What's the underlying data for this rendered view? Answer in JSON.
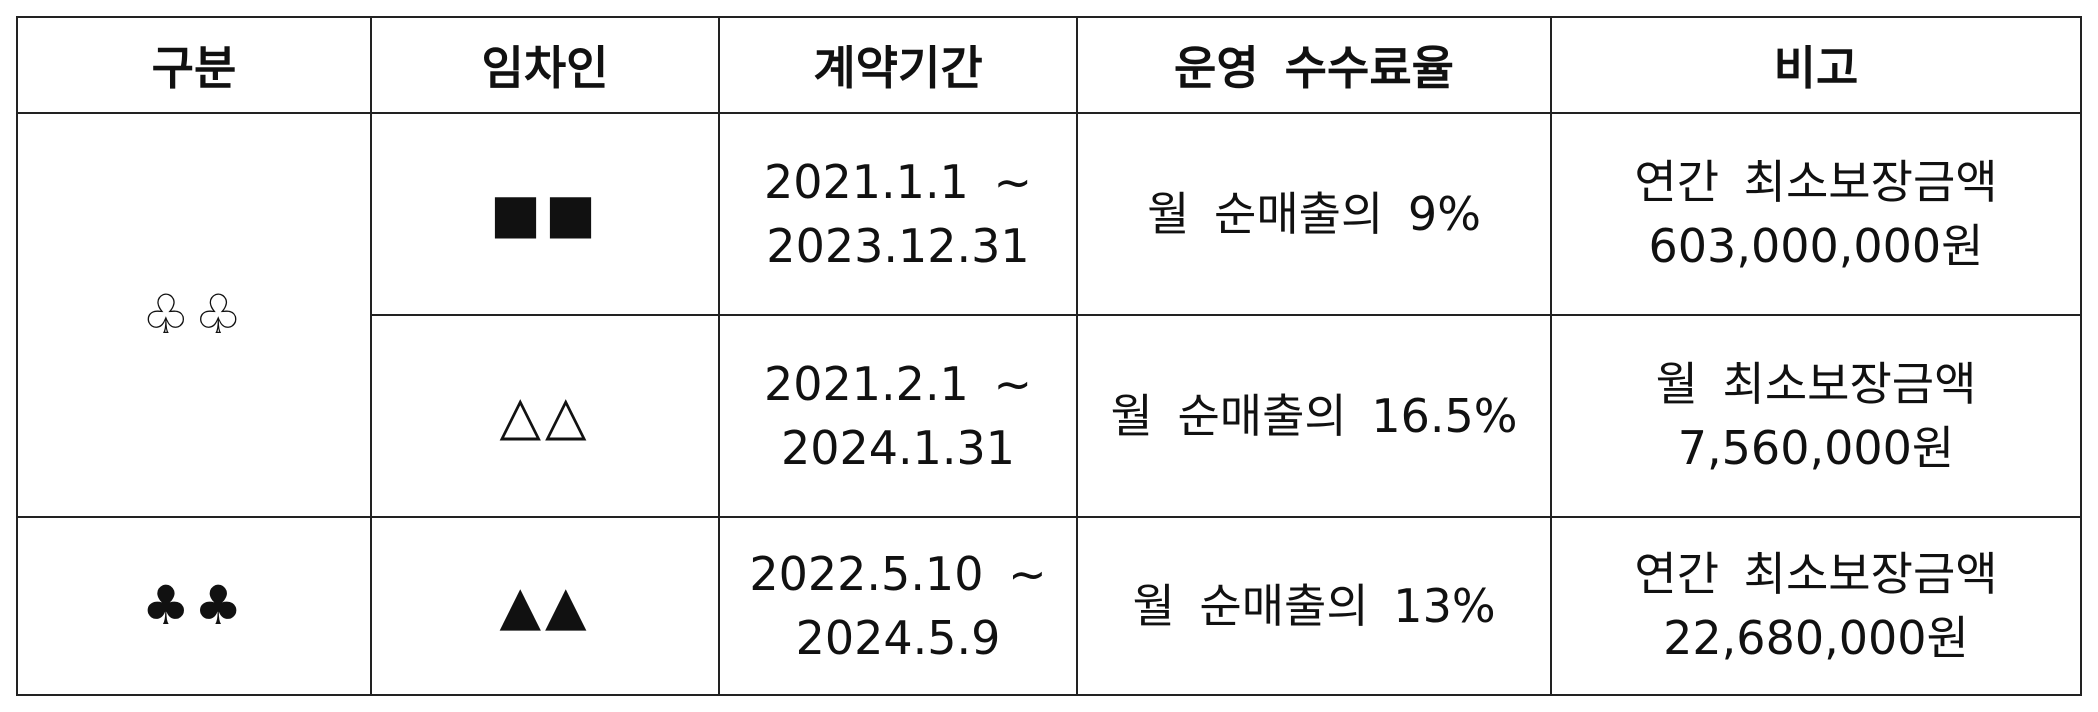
{
  "headers": [
    "구분",
    "임차인",
    "계약기간",
    "운영 수수료율",
    "비고"
  ],
  "groups": [
    {
      "category": "♧♧",
      "rows": [
        {
          "tenant": "■■",
          "period_start": "2021.1.1 ~",
          "period_end": "2023.12.31",
          "fee_rate": "월 순매출의 9%",
          "note_line1": "연간 최소보장금액",
          "note_line2": "603,000,000원"
        },
        {
          "tenant": "△△",
          "period_start": "2021.2.1 ~",
          "period_end": "2024.1.31",
          "fee_rate": "월 순매출의 16.5%",
          "note_line1": "월 최소보장금액",
          "note_line2": "7,560,000원"
        }
      ]
    },
    {
      "category": "♣♣",
      "rows": [
        {
          "tenant": "▲▲",
          "period_start": "2022.5.10 ~",
          "period_end": "2024.5.9",
          "fee_rate": "월 순매출의 13%",
          "note_line1": "연간 최소보장금액",
          "note_line2": "22,680,000원"
        }
      ]
    }
  ]
}
